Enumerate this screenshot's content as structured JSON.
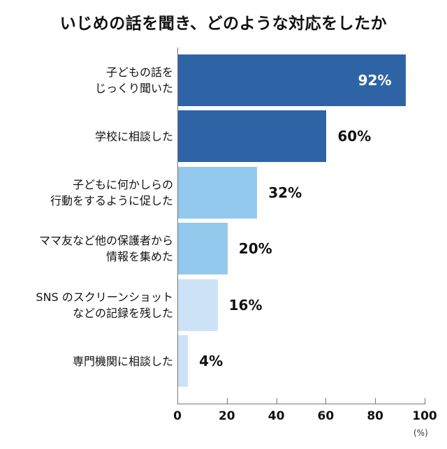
{
  "chart_data": {
    "type": "bar",
    "orientation": "horizontal",
    "title": "いじめの話を聞き、どのような対応をしたか",
    "xlabel": "",
    "ylabel": "",
    "unit_label": "(%)",
    "xlim": [
      0,
      100
    ],
    "xticks": [
      "0",
      "20",
      "40",
      "60",
      "80",
      "100"
    ],
    "grid": false,
    "legend": null,
    "categories": [
      [
        "子どもの話を",
        "じっくり聞いた"
      ],
      [
        "学校に相談した"
      ],
      [
        "子どもに何かしらの",
        "行動をするように促した"
      ],
      [
        "ママ友など他の保護者から",
        "情報を集めた"
      ],
      [
        "SNS のスクリーンショット",
        "などの記録を残した"
      ],
      [
        "専門機関に相談した"
      ]
    ],
    "values": [
      92,
      60,
      32,
      20,
      16,
      4
    ],
    "value_labels": [
      "92%",
      "60%",
      "32%",
      "20%",
      "16%",
      "4%"
    ],
    "bar_colors": [
      "#2e64a6",
      "#2e64a6",
      "#93c9ed",
      "#93c9ed",
      "#cce3f7",
      "#cce3f7"
    ]
  }
}
